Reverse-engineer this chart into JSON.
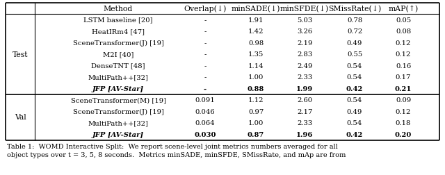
{
  "header": [
    "Method",
    "Overlap(↓)",
    "minSADE(↓)",
    "minSFDE(↓)",
    "SMissRate(↓)",
    "mAP(↑)"
  ],
  "test_rows": [
    [
      "LSTM baseline [20]",
      "-",
      "1.91",
      "5.03",
      "0.78",
      "0.05",
      false
    ],
    [
      "HeatIRm4 [47]",
      "-",
      "1.42",
      "3.26",
      "0.72",
      "0.08",
      false
    ],
    [
      "SceneTransformer(J) [19]",
      "-",
      "0.98",
      "2.19",
      "0.49",
      "0.12",
      false
    ],
    [
      "M2I [40]",
      "-",
      "1.35",
      "2.83",
      "0.55",
      "0.12",
      false
    ],
    [
      "DenseTNT [48]",
      "-",
      "1.14",
      "2.49",
      "0.54",
      "0.16",
      false
    ],
    [
      "MultiPath++[32]",
      "-",
      "1.00",
      "2.33",
      "0.54",
      "0.17",
      false
    ],
    [
      "JFP [AV-Star]",
      "-",
      "0.88",
      "1.99",
      "0.42",
      "0.21",
      true
    ]
  ],
  "val_rows": [
    [
      "SceneTransformer(M) [19]",
      "0.091",
      "1.12",
      "2.60",
      "0.54",
      "0.09",
      false
    ],
    [
      "SceneTransformer(J) [19]",
      "0.046",
      "0.97",
      "2.17",
      "0.49",
      "0.12",
      false
    ],
    [
      "MultiPath++[32]",
      "0.064",
      "1.00",
      "2.33",
      "0.54",
      "0.18",
      false
    ],
    [
      "JFP [AV-Star]",
      "0.030",
      "0.87",
      "1.96",
      "0.42",
      "0.20",
      true
    ]
  ],
  "caption_line1": "Table 1:  WOMD Interactive Split:  We report scene-level joint metrics numbers averaged for all",
  "caption_line2": "object types over t = 3, 5, 8 seconds.  Metrics minSADE, minSFDE, SMissRate, and mAp are from",
  "bg_color": "#ffffff"
}
